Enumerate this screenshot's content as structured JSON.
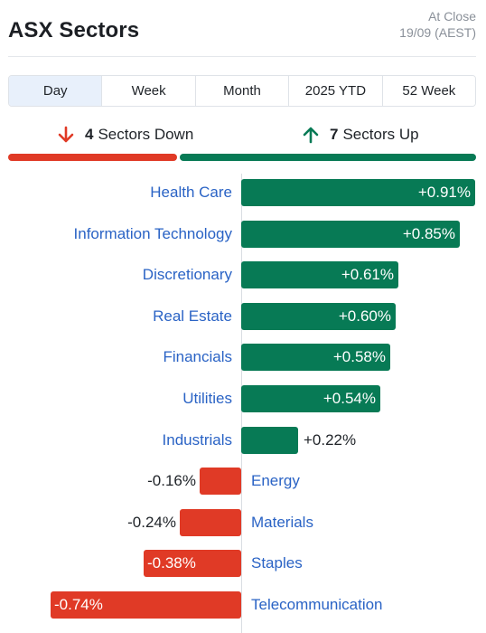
{
  "header": {
    "title": "ASX Sectors",
    "as_of_line1": "At Close",
    "as_of_line2": "19/09 (AEST)"
  },
  "tabs": [
    {
      "label": "Day",
      "active": true
    },
    {
      "label": "Week",
      "active": false
    },
    {
      "label": "Month",
      "active": false
    },
    {
      "label": "2025 YTD",
      "active": false
    },
    {
      "label": "52 Week",
      "active": false
    }
  ],
  "summary": {
    "down_count": "4",
    "down_label": "Sectors Down",
    "up_count": "7",
    "up_label": "Sectors Up"
  },
  "colors": {
    "up": "#077a55",
    "down": "#e03a26",
    "link": "#2a63c5"
  },
  "chart_data": {
    "type": "bar",
    "orientation": "horizontal",
    "categories": [
      "Health Care",
      "Information Technology",
      "Discretionary",
      "Real Estate",
      "Financials",
      "Utilities",
      "Industrials",
      "Energy",
      "Materials",
      "Staples",
      "Telecommunication"
    ],
    "values": [
      0.91,
      0.85,
      0.61,
      0.6,
      0.58,
      0.54,
      0.22,
      -0.16,
      -0.24,
      -0.38,
      -0.74
    ],
    "value_labels": [
      "+0.91%",
      "+0.85%",
      "+0.61%",
      "+0.60%",
      "+0.58%",
      "+0.54%",
      "+0.22%",
      "-0.16%",
      "-0.24%",
      "-0.38%",
      "-0.74%"
    ]
  }
}
